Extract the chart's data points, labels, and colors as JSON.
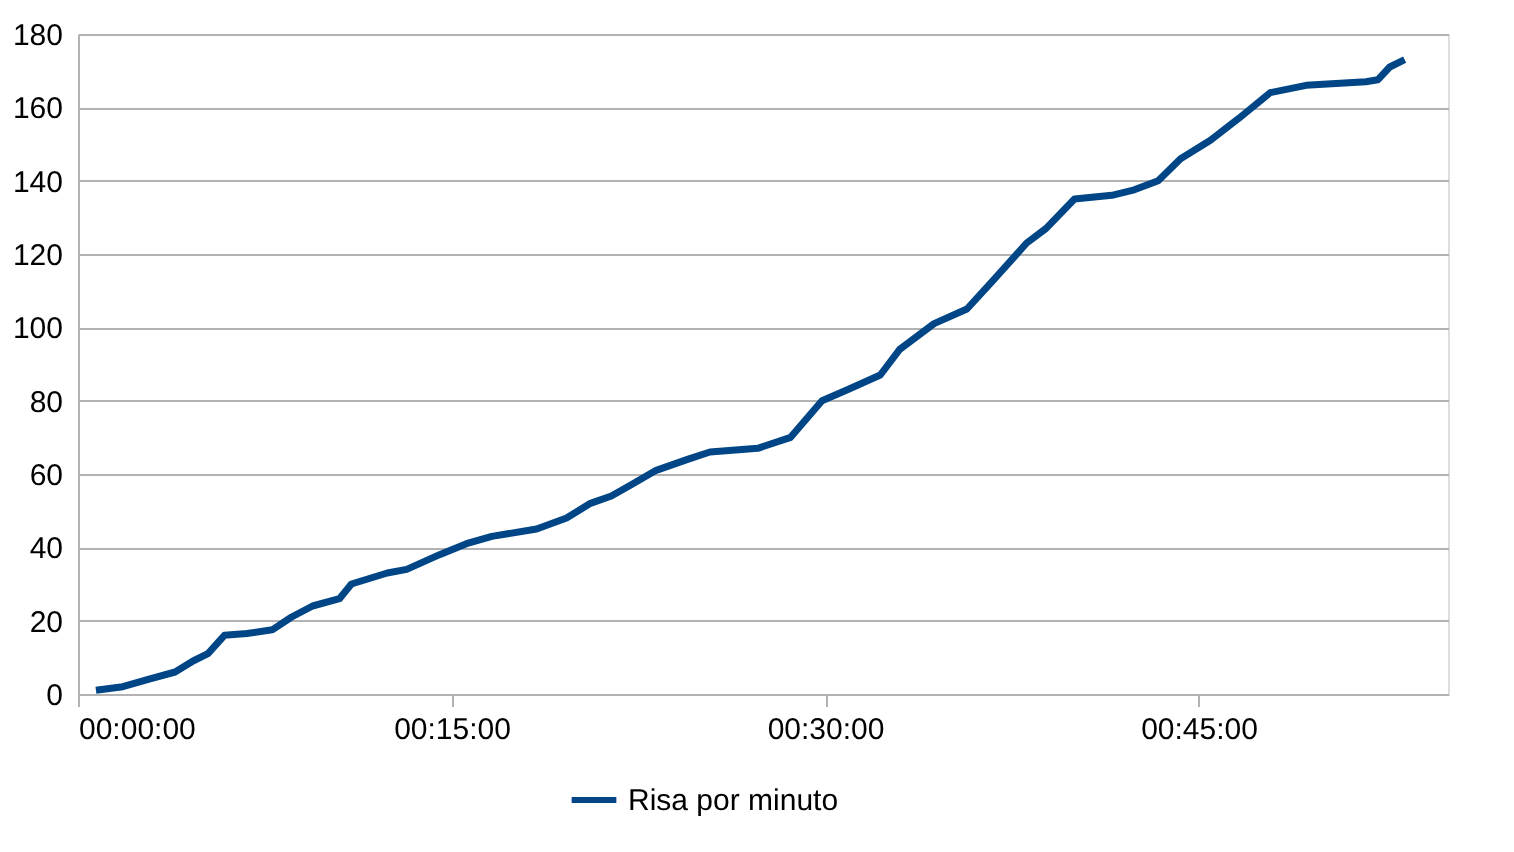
{
  "chart_data": {
    "type": "line",
    "x": [
      0.012,
      0.03,
      0.047,
      0.065,
      0.077,
      0.087,
      0.098,
      0.113,
      0.13,
      0.143,
      0.157,
      0.175,
      0.183,
      0.207,
      0.22,
      0.242,
      0.26,
      0.277,
      0.307,
      0.327,
      0.343,
      0.357,
      0.37,
      0.387,
      0.408,
      0.423,
      0.455,
      0.477,
      0.498,
      0.515,
      0.537,
      0.55,
      0.573,
      0.595,
      0.613,
      0.635,
      0.648,
      0.667,
      0.692,
      0.707,
      0.723,
      0.738,
      0.758,
      0.777,
      0.798,
      0.822,
      0.862,
      0.87,
      0.878,
      0.888
    ],
    "series": [
      {
        "name": "Risa por minuto",
        "color": "#004586",
        "values": [
          1,
          2,
          4,
          6,
          9,
          11,
          16,
          16.5,
          17.5,
          21,
          24,
          26,
          30,
          33,
          34,
          38,
          41,
          43,
          45,
          48,
          52,
          54,
          57,
          61,
          64,
          66,
          67,
          70,
          80,
          83,
          87,
          94,
          101,
          105,
          113,
          123,
          127,
          135,
          136,
          137.5,
          140,
          146,
          151,
          157,
          164,
          166,
          167,
          167.5,
          171,
          173
        ]
      }
    ],
    "xlim": [
      0,
      0.917
    ],
    "xticks": [
      {
        "value": 0,
        "label": "00:00:00"
      },
      {
        "value": 0.25,
        "label": "00:15:00"
      },
      {
        "value": 0.5,
        "label": "00:30:00"
      },
      {
        "value": 0.75,
        "label": "00:45:00"
      }
    ],
    "ylim": [
      0,
      180
    ],
    "yticks": [
      0,
      20,
      40,
      60,
      80,
      100,
      120,
      140,
      160,
      180
    ],
    "grid": "y",
    "legend": "bottom",
    "marker": "none",
    "line_style": "solid"
  }
}
